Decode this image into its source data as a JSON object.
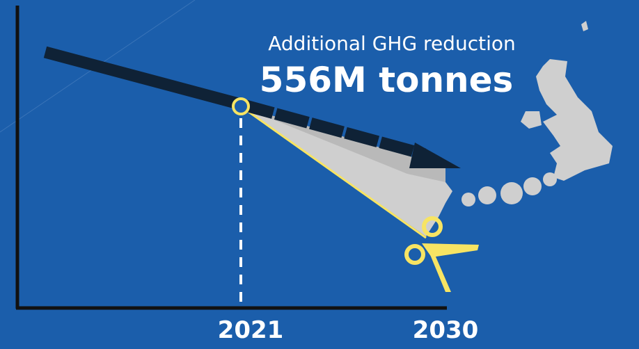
{
  "headline": {
    "subtitle": "Additional GHG reduction",
    "amount": "556M tonnes"
  },
  "axis": {
    "start_label": "2021",
    "end_label": "2030"
  }
}
